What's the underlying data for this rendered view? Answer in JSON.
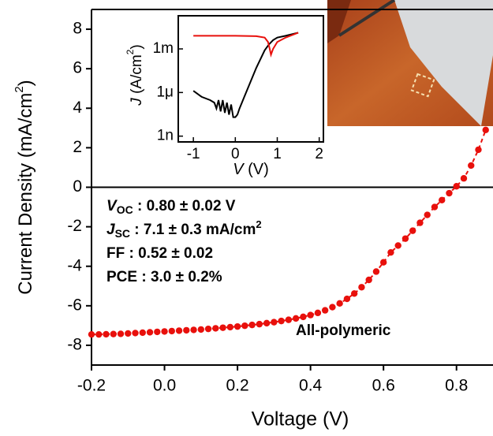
{
  "chart_data": [
    {
      "type": "scatter",
      "color": "#e8100c",
      "xlabel": "Voltage (V)",
      "ylabel_parts": [
        "Current Density (mA/cm",
        "2",
        ")"
      ],
      "annotations": [
        [
          "V",
          "OC",
          " : 0.80 ± 0.02 V"
        ],
        [
          "J",
          "SC",
          " : 7.1 ± 0.3 mA/cm",
          "2"
        ],
        [
          "FF : 0.52 ± 0.02"
        ],
        [
          "PCE : 3.0 ± 0.2%"
        ],
        [
          "All-polymeric"
        ]
      ],
      "xlim": [
        -0.2,
        0.9
      ],
      "ylim": [
        -9,
        9
      ],
      "xticks": [
        -0.2,
        {
          "value": 0,
          "label": "0.0"
        },
        0.2,
        0.4,
        0.6,
        0.8
      ],
      "yticks": [
        -8,
        -6,
        -4,
        -2,
        0,
        2,
        4,
        6,
        8
      ],
      "zero_line": true,
      "x": [
        -0.2,
        -0.18,
        -0.16,
        -0.14,
        -0.12,
        -0.1,
        -0.08,
        -0.06,
        -0.04,
        -0.02,
        0,
        0.02,
        0.04,
        0.06,
        0.08,
        0.1,
        0.12,
        0.14,
        0.16,
        0.18,
        0.2,
        0.22,
        0.24,
        0.26,
        0.28,
        0.3,
        0.32,
        0.34,
        0.36,
        0.38,
        0.4,
        0.42,
        0.44,
        0.46,
        0.48,
        0.5,
        0.52,
        0.54,
        0.56,
        0.58,
        0.6,
        0.62,
        0.64,
        0.66,
        0.68,
        0.7,
        0.72,
        0.74,
        0.76,
        0.78,
        0.8,
        0.82,
        0.84,
        0.86,
        0.88
      ],
      "values": [
        -7.45,
        -7.45,
        -7.44,
        -7.43,
        -7.42,
        -7.4,
        -7.38,
        -7.36,
        -7.34,
        -7.32,
        -7.3,
        -7.28,
        -7.26,
        -7.24,
        -7.22,
        -7.2,
        -7.17,
        -7.14,
        -7.11,
        -7.08,
        -7.05,
        -7.01,
        -6.97,
        -6.93,
        -6.88,
        -6.83,
        -6.77,
        -6.71,
        -6.64,
        -6.56,
        -6.47,
        -6.36,
        -6.23,
        -6.07,
        -5.88,
        -5.65,
        -5.38,
        -5.06,
        -4.69,
        -4.27,
        -3.8,
        -3.3,
        -2.95,
        -2.6,
        -2.2,
        -1.8,
        -1.4,
        -1.0,
        -0.65,
        -0.3,
        0.05,
        0.45,
        1.1,
        1.9,
        2.9
      ]
    },
    {
      "type": "line",
      "yscale": "log",
      "xlabel_parts": [
        "V",
        " (V)"
      ],
      "ylabel_parts": [
        "J",
        " (A/cm",
        "2",
        ")"
      ],
      "xlim": [
        -1.36,
        2.1
      ],
      "ylim": [
        4e-10,
        0.19
      ],
      "xticks": [
        -1,
        0,
        1,
        2
      ],
      "yticks": [
        {
          "value": 1e-09,
          "label": "1n"
        },
        {
          "value": 1e-06,
          "label": "1μ"
        },
        {
          "value": 0.001,
          "label": "1m"
        }
      ],
      "series": [
        {
          "color": "#000000",
          "x": [
            -1,
            -0.8,
            -0.6,
            -0.5,
            -0.45,
            -0.4,
            -0.35,
            -0.3,
            -0.25,
            -0.2,
            -0.15,
            -0.1,
            -0.05,
            0,
            0.05,
            0.1,
            0.2,
            0.3,
            0.4,
            0.5,
            0.6,
            0.7,
            0.8,
            0.9,
            1.0,
            1.2,
            1.5
          ],
          "values": [
            1.3e-06,
            5e-07,
            3e-07,
            2e-07,
            8e-08,
            3e-07,
            5e-08,
            3e-07,
            4e-08,
            2e-07,
            3e-08,
            1.5e-07,
            2e-08,
            2e-08,
            3e-08,
            8e-08,
            4e-07,
            2e-06,
            1e-05,
            5e-05,
            0.0002,
            0.0008,
            0.002,
            0.004,
            0.006,
            0.008,
            0.013
          ]
        },
        {
          "color": "#e8100c",
          "x": [
            -1,
            -0.5,
            0,
            0.5,
            0.7,
            0.78,
            0.82,
            0.85,
            0.9,
            1.0,
            1.2,
            1.5
          ],
          "values": [
            0.008,
            0.008,
            0.008,
            0.0075,
            0.006,
            0.003,
            0.001,
            0.0004,
            0.001,
            0.003,
            0.006,
            0.013
          ]
        }
      ]
    }
  ]
}
